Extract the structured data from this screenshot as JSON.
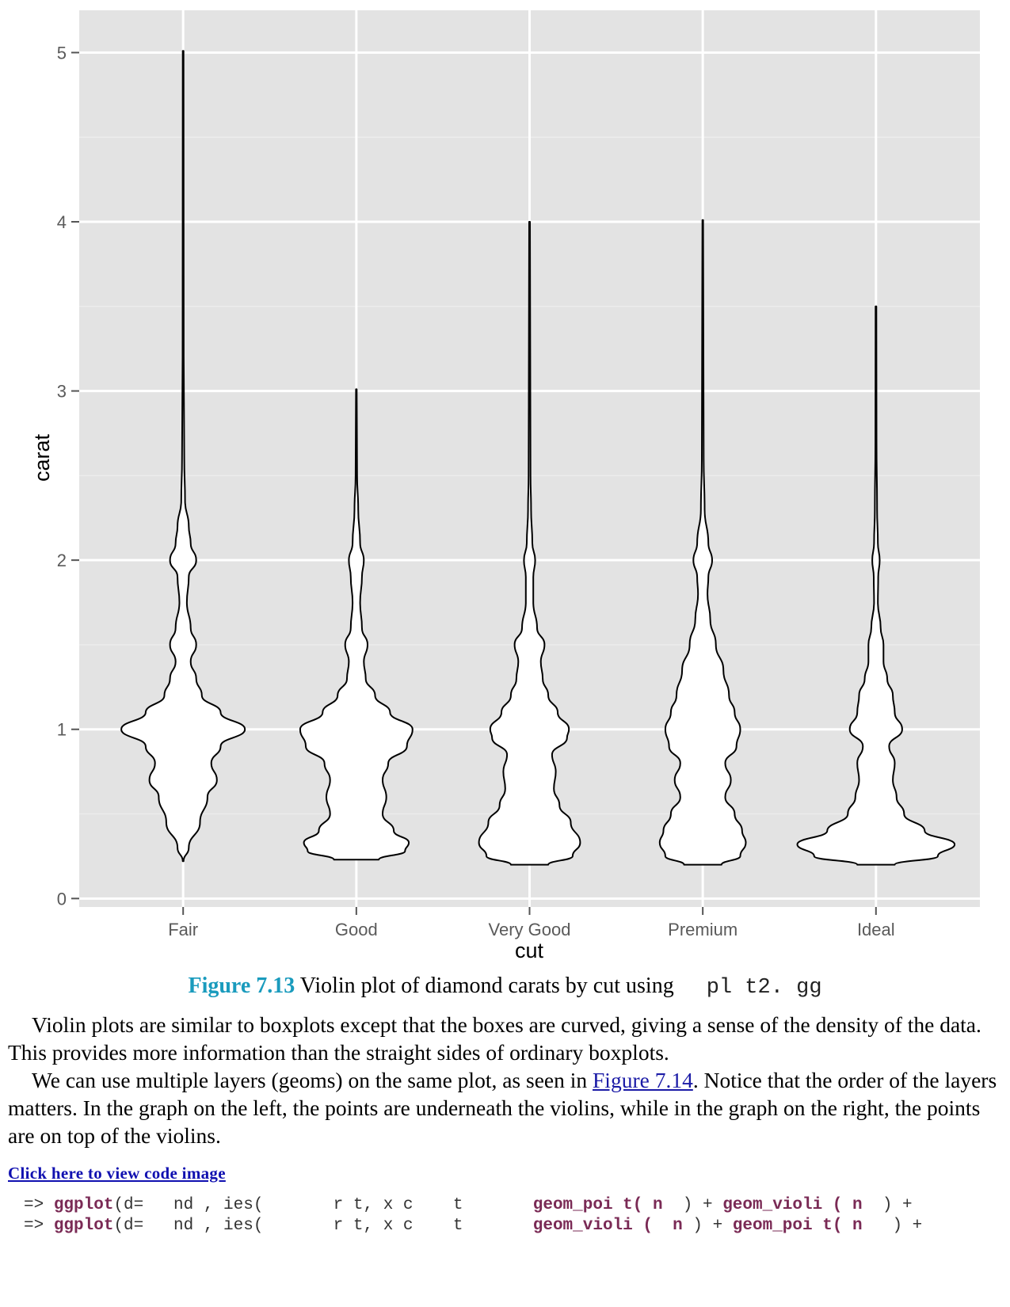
{
  "chart_data": {
    "type": "violin",
    "xlabel": "cut",
    "ylabel": "carat",
    "categories": [
      "Fair",
      "Good",
      "Very Good",
      "Premium",
      "Ideal"
    ],
    "ylim": [
      -0.05,
      5.25
    ],
    "yticks": [
      0,
      1,
      2,
      3,
      4,
      5
    ],
    "grid": true,
    "colors": {
      "panel": "#e3e3e3",
      "grid_major": "#ffffff",
      "grid_minor": "#ececec",
      "violin_fill": "#ffffff",
      "violin_stroke": "#000000"
    },
    "violins": [
      {
        "name": "Fair",
        "min": 0.22,
        "max": 5.01,
        "profile": [
          [
            0.22,
            0.002
          ],
          [
            0.3,
            0.03
          ],
          [
            0.45,
            0.09
          ],
          [
            0.6,
            0.13
          ],
          [
            0.7,
            0.18
          ],
          [
            0.8,
            0.15
          ],
          [
            0.9,
            0.2
          ],
          [
            1.0,
            0.33
          ],
          [
            1.1,
            0.2
          ],
          [
            1.2,
            0.1
          ],
          [
            1.3,
            0.07
          ],
          [
            1.4,
            0.04
          ],
          [
            1.5,
            0.07
          ],
          [
            1.6,
            0.04
          ],
          [
            1.75,
            0.02
          ],
          [
            1.9,
            0.03
          ],
          [
            2.0,
            0.07
          ],
          [
            2.1,
            0.04
          ],
          [
            2.2,
            0.03
          ],
          [
            2.35,
            0.01
          ],
          [
            2.6,
            0.006
          ],
          [
            3.2,
            0.003
          ],
          [
            5.01,
            0.002
          ]
        ]
      },
      {
        "name": "Good",
        "min": 0.23,
        "max": 3.01,
        "profile": [
          [
            0.23,
            0.12
          ],
          [
            0.28,
            0.26
          ],
          [
            0.33,
            0.28
          ],
          [
            0.4,
            0.2
          ],
          [
            0.5,
            0.14
          ],
          [
            0.6,
            0.16
          ],
          [
            0.7,
            0.14
          ],
          [
            0.8,
            0.17
          ],
          [
            0.9,
            0.27
          ],
          [
            1.0,
            0.3
          ],
          [
            1.1,
            0.18
          ],
          [
            1.2,
            0.1
          ],
          [
            1.3,
            0.05
          ],
          [
            1.4,
            0.04
          ],
          [
            1.5,
            0.06
          ],
          [
            1.6,
            0.03
          ],
          [
            1.75,
            0.02
          ],
          [
            1.9,
            0.03
          ],
          [
            2.0,
            0.04
          ],
          [
            2.1,
            0.02
          ],
          [
            2.3,
            0.01
          ],
          [
            2.5,
            0.004
          ],
          [
            3.01,
            0.002
          ]
        ]
      },
      {
        "name": "Very Good",
        "min": 0.2,
        "max": 4.0,
        "profile": [
          [
            0.2,
            0.1
          ],
          [
            0.25,
            0.23
          ],
          [
            0.33,
            0.27
          ],
          [
            0.45,
            0.22
          ],
          [
            0.55,
            0.16
          ],
          [
            0.65,
            0.13
          ],
          [
            0.75,
            0.14
          ],
          [
            0.85,
            0.12
          ],
          [
            0.95,
            0.2
          ],
          [
            1.0,
            0.21
          ],
          [
            1.1,
            0.15
          ],
          [
            1.2,
            0.1
          ],
          [
            1.3,
            0.07
          ],
          [
            1.4,
            0.06
          ],
          [
            1.5,
            0.08
          ],
          [
            1.6,
            0.04
          ],
          [
            1.75,
            0.02
          ],
          [
            1.9,
            0.02
          ],
          [
            2.0,
            0.03
          ],
          [
            2.1,
            0.015
          ],
          [
            2.3,
            0.008
          ],
          [
            2.5,
            0.005
          ],
          [
            4.0,
            0.002
          ]
        ]
      },
      {
        "name": "Premium",
        "min": 0.2,
        "max": 4.01,
        "profile": [
          [
            0.2,
            0.1
          ],
          [
            0.25,
            0.2
          ],
          [
            0.33,
            0.23
          ],
          [
            0.4,
            0.21
          ],
          [
            0.5,
            0.17
          ],
          [
            0.6,
            0.12
          ],
          [
            0.7,
            0.15
          ],
          [
            0.8,
            0.12
          ],
          [
            0.9,
            0.18
          ],
          [
            1.0,
            0.2
          ],
          [
            1.1,
            0.17
          ],
          [
            1.2,
            0.14
          ],
          [
            1.35,
            0.11
          ],
          [
            1.5,
            0.07
          ],
          [
            1.65,
            0.04
          ],
          [
            1.8,
            0.025
          ],
          [
            1.9,
            0.03
          ],
          [
            2.0,
            0.05
          ],
          [
            2.1,
            0.03
          ],
          [
            2.3,
            0.01
          ],
          [
            2.6,
            0.005
          ],
          [
            4.01,
            0.002
          ]
        ]
      },
      {
        "name": "Ideal",
        "min": 0.2,
        "max": 3.5,
        "profile": [
          [
            0.2,
            0.1
          ],
          [
            0.25,
            0.33
          ],
          [
            0.32,
            0.42
          ],
          [
            0.4,
            0.26
          ],
          [
            0.5,
            0.15
          ],
          [
            0.6,
            0.11
          ],
          [
            0.7,
            0.09
          ],
          [
            0.8,
            0.1
          ],
          [
            0.9,
            0.07
          ],
          [
            1.0,
            0.14
          ],
          [
            1.1,
            0.1
          ],
          [
            1.2,
            0.09
          ],
          [
            1.3,
            0.06
          ],
          [
            1.4,
            0.04
          ],
          [
            1.5,
            0.04
          ],
          [
            1.6,
            0.025
          ],
          [
            1.75,
            0.01
          ],
          [
            1.9,
            0.012
          ],
          [
            2.0,
            0.02
          ],
          [
            2.1,
            0.01
          ],
          [
            2.3,
            0.006
          ],
          [
            2.7,
            0.003
          ],
          [
            3.5,
            0.002
          ]
        ]
      }
    ]
  },
  "caption": {
    "figure_number": "Figure 7.13",
    "text": "Violin plot of diamond carats by cut using",
    "code": "pl t2. gg"
  },
  "body": {
    "p1": "Violin plots are similar to boxplots except that the boxes are curved, giving a sense of the density of the data. This provides more information than the straight sides of ordinary boxplots.",
    "p2_before": "We can use multiple layers (geoms) on the same plot, as seen in ",
    "p2_link": "Figure 7.14",
    "p2_after": ". Notice that the order of the layers matters. In the graph on the left, the points are underneath the violins, while in the graph on the right, the points are on top of the violins."
  },
  "code_link": "Click here to view code image",
  "code_lines": [
    {
      "prompt": "=> ",
      "fn": "ggplot",
      "args": "(d=   nd , ies(       r t, x c    t       ",
      "g1": "geom_poi t( n  ",
      "sep": ") + ",
      "g2": "geom_violi ( n  ",
      "end": ") +"
    },
    {
      "prompt": "=> ",
      "fn": "ggplot",
      "args": "(d=   nd , ies(       r t, x c    t       ",
      "g1": "geom_violi (  n ",
      "sep": ") + ",
      "g2": "geom_poi t( n   ",
      "end": ") +"
    }
  ]
}
